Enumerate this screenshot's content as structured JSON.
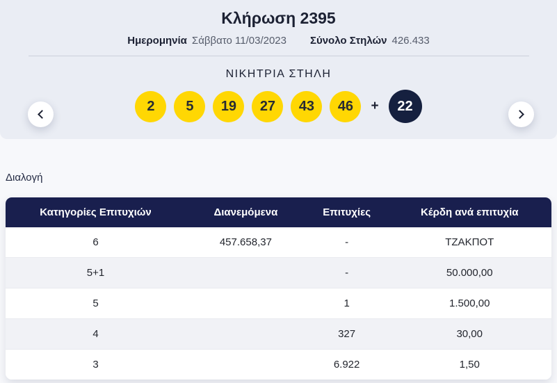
{
  "hero": {
    "title": "Κλήρωση 2395",
    "date_label": "Ημερομηνία",
    "date_value": "Σάββατο 11/03/2023",
    "total_columns_label": "Σύνολο Στηλών",
    "total_columns_value": "426.433",
    "winning_heading": "ΝΙΚΗΤΡΙΑ ΣΤΗΛΗ",
    "numbers": [
      "2",
      "5",
      "19",
      "27",
      "43",
      "46"
    ],
    "plus": "+",
    "bonus_number": "22"
  },
  "results": {
    "section_label": "Διαλογή",
    "table": {
      "headers": [
        "Κατηγορίες Επιτυχιών",
        "Διανεμόμενα",
        "Επιτυχίες",
        "Κέρδη ανά επιτυχία"
      ],
      "rows": [
        [
          "6",
          "457.658,37",
          "-",
          "ΤΖΑΚΠΟΤ"
        ],
        [
          "5+1",
          "",
          "-",
          "50.000,00"
        ],
        [
          "5",
          "",
          "1",
          "1.500,00"
        ],
        [
          "4",
          "",
          "327",
          "30,00"
        ],
        [
          "3",
          "",
          "6.922",
          "1,50"
        ]
      ]
    }
  },
  "colors": {
    "ball_yellow": "#ffd703",
    "header_navy": "#191f4e",
    "bonus_ball_navy": "#15203f",
    "hero_background": "#eaedf4",
    "row_alt_background": "#f1f2f6"
  }
}
